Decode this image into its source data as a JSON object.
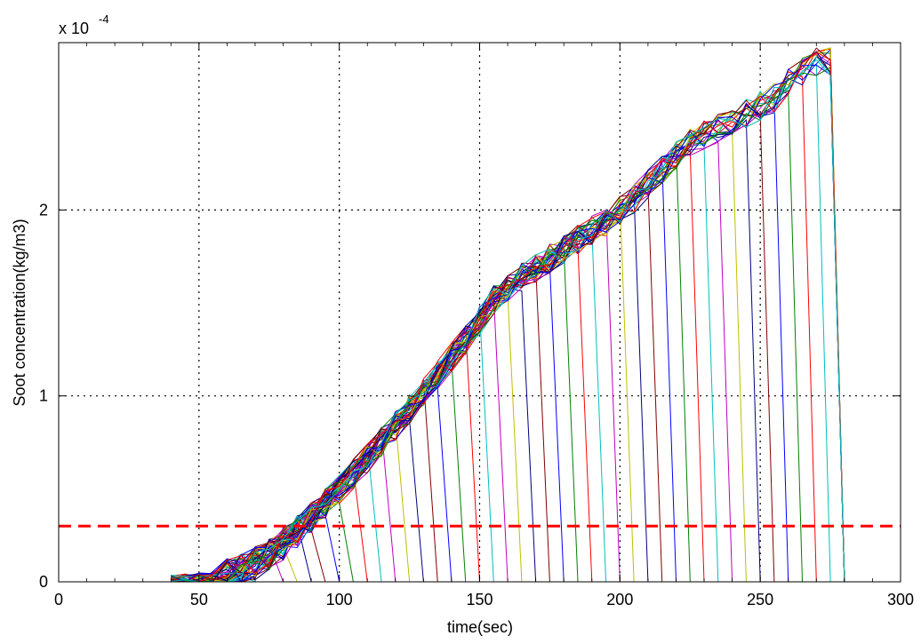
{
  "chart_data": {
    "type": "line",
    "title": "",
    "xlabel": "time(sec)",
    "ylabel": "Soot concentration(kg/m3)",
    "y_scale_prefix": "x 10",
    "y_scale_exponent": "-4",
    "xlim": [
      0,
      300
    ],
    "ylim": [
      0,
      2.9
    ],
    "grid": true,
    "x_ticks": [
      0,
      50,
      100,
      150,
      200,
      250,
      300
    ],
    "x_tick_labels": [
      "0",
      "50",
      "100",
      "150",
      "200",
      "250",
      "300"
    ],
    "y_ticks": [
      0,
      1,
      2
    ],
    "y_tick_labels": [
      "0",
      "1",
      "2"
    ],
    "threshold": {
      "y": 0.3,
      "color": "#ff0000",
      "style": "dashed"
    },
    "series_colors": [
      "#0000ff",
      "#008000",
      "#ff0000",
      "#00bfbf",
      "#bf00bf",
      "#bfbf00",
      "#000080",
      "#800000"
    ],
    "growth_curve": {
      "x": [
        0,
        40,
        55,
        65,
        75,
        85,
        95,
        105,
        115,
        125,
        135,
        145,
        155,
        165,
        175,
        185,
        195,
        205,
        215,
        225,
        235,
        245,
        255,
        262,
        270
      ],
      "y": [
        0,
        0,
        0.02,
        0.06,
        0.14,
        0.27,
        0.42,
        0.58,
        0.75,
        0.93,
        1.12,
        1.3,
        1.52,
        1.64,
        1.74,
        1.84,
        1.94,
        2.06,
        2.22,
        2.36,
        2.44,
        2.52,
        2.6,
        2.72,
        2.8
      ]
    },
    "series_end_times": [
      40,
      50,
      60,
      70,
      80,
      85,
      90,
      95,
      100,
      105,
      110,
      115,
      120,
      125,
      130,
      135,
      140,
      145,
      150,
      155,
      160,
      165,
      170,
      175,
      180,
      185,
      190,
      195,
      200,
      205,
      210,
      215,
      220,
      225,
      230,
      235,
      240,
      245,
      250,
      255,
      260,
      265,
      270,
      275,
      280,
      280,
      280,
      280,
      280,
      280,
      280,
      280,
      280,
      280,
      280,
      280,
      280,
      280,
      280,
      280
    ]
  }
}
